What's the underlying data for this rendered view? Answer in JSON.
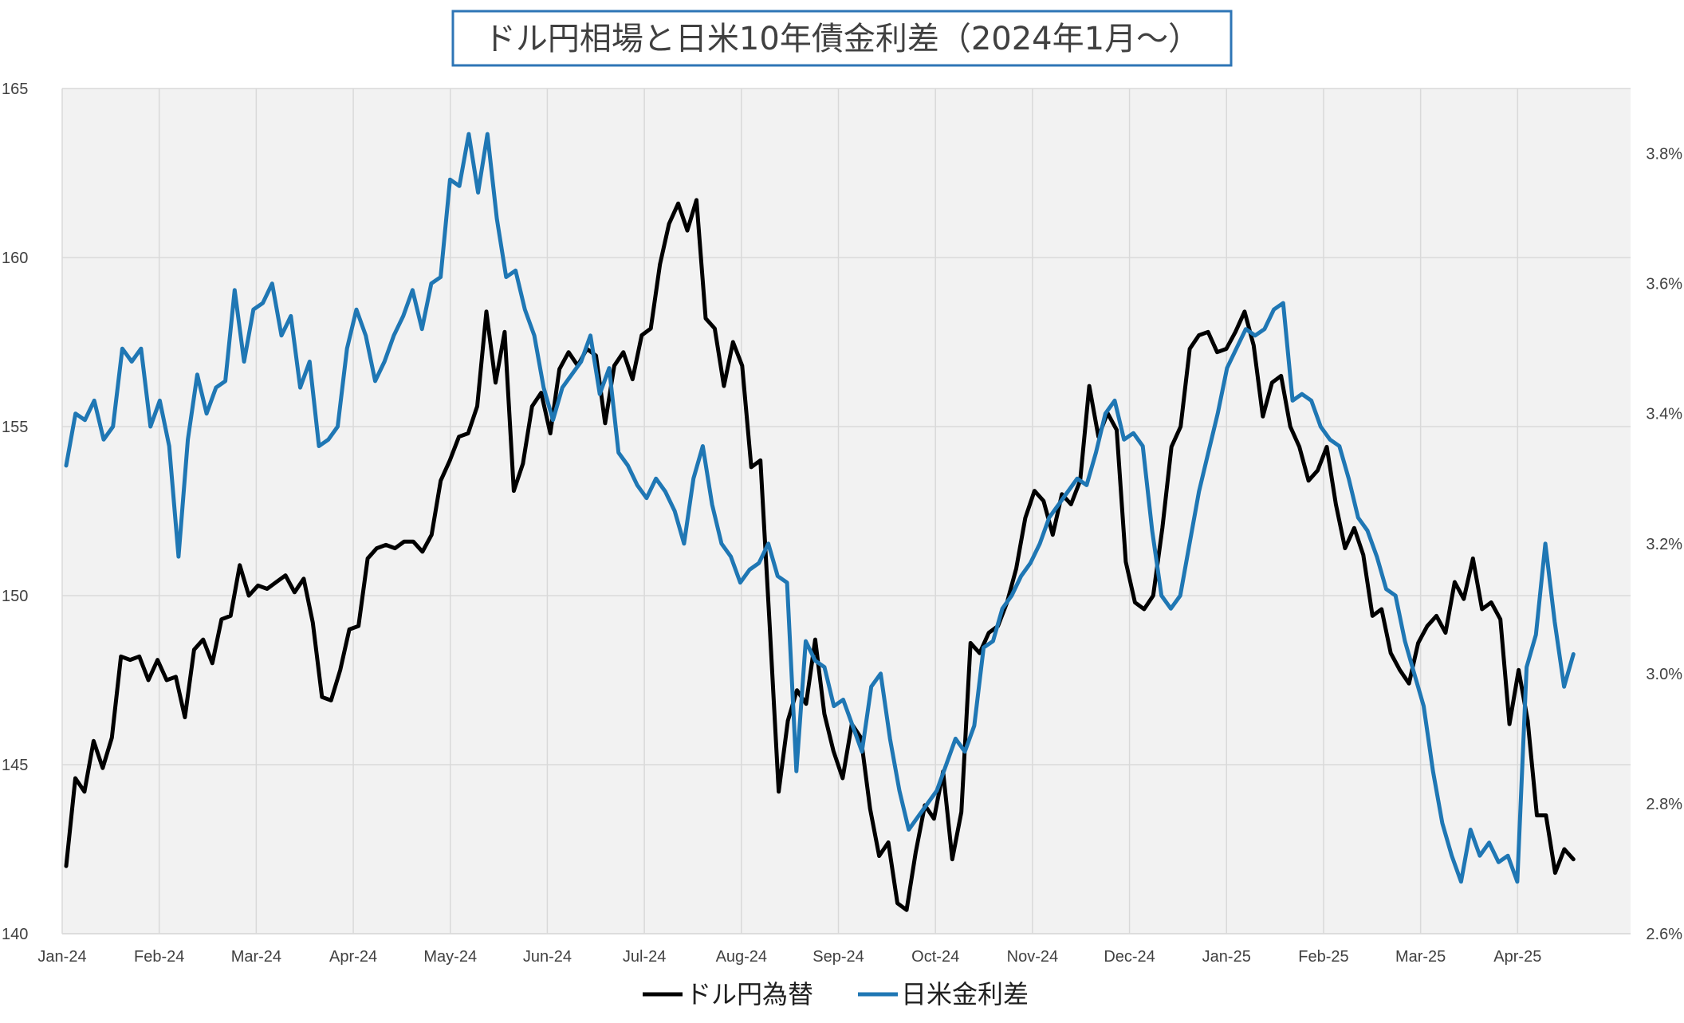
{
  "chart_data": {
    "type": "line",
    "title": "ドル円相場と日米10年債金利差（2024年1月～）",
    "x_labels": [
      "Jan-24",
      "Feb-24",
      "Mar-24",
      "Apr-24",
      "May-24",
      "Jun-24",
      "Jul-24",
      "Aug-24",
      "Sep-24",
      "Oct-24",
      "Nov-24",
      "Dec-24",
      "Jan-25",
      "Feb-25",
      "Mar-25",
      "Apr-25"
    ],
    "y_left": {
      "min": 140,
      "max": 165,
      "ticks": [
        "140",
        "145",
        "150",
        "155",
        "160",
        "165"
      ]
    },
    "y_right": {
      "min": 2.6,
      "max": 3.9,
      "ticks": [
        "2.6%",
        "2.8%",
        "3.0%",
        "3.2%",
        "3.4%",
        "3.6%",
        "3.8%"
      ]
    },
    "grid": true,
    "legend_position": "bottom",
    "series": [
      {
        "name": "ドル円為替",
        "axis": "left",
        "color": "#000000",
        "values": [
          142.0,
          144.6,
          144.2,
          145.7,
          144.9,
          145.8,
          148.2,
          148.1,
          148.2,
          147.5,
          148.1,
          147.5,
          147.6,
          146.4,
          148.4,
          148.7,
          148.0,
          149.3,
          149.4,
          150.9,
          150.0,
          150.3,
          150.2,
          150.4,
          150.6,
          150.1,
          150.5,
          149.2,
          147.0,
          146.9,
          147.8,
          149.0,
          149.1,
          151.1,
          151.4,
          151.5,
          151.4,
          151.6,
          151.6,
          151.3,
          151.8,
          153.4,
          154.0,
          154.7,
          154.8,
          155.6,
          158.4,
          156.3,
          157.8,
          153.1,
          153.9,
          155.6,
          156.0,
          154.8,
          156.7,
          157.2,
          156.8,
          157.3,
          157.1,
          155.1,
          156.8,
          157.2,
          156.4,
          157.7,
          157.9,
          159.8,
          161.0,
          161.6,
          160.8,
          161.7,
          158.2,
          157.9,
          156.2,
          157.5,
          156.8,
          153.8,
          154.0,
          149.2,
          144.2,
          146.3,
          147.2,
          146.8,
          148.7,
          146.5,
          145.4,
          144.6,
          146.2,
          145.8,
          143.7,
          142.3,
          142.7,
          140.9,
          140.7,
          142.4,
          143.8,
          143.4,
          144.8,
          142.2,
          143.6,
          148.6,
          148.3,
          148.9,
          149.1,
          149.8,
          150.8,
          152.3,
          153.1,
          152.8,
          151.8,
          153.0,
          152.7,
          153.4,
          156.2,
          154.7,
          155.4,
          154.9,
          151.0,
          149.8,
          149.6,
          150.0,
          152.0,
          154.4,
          155.0,
          157.3,
          157.7,
          157.8,
          157.2,
          157.3,
          157.8,
          158.4,
          157.4,
          155.3,
          156.3,
          156.5,
          155.0,
          154.4,
          153.4,
          153.7,
          154.4,
          152.7,
          151.4,
          152.0,
          151.2,
          149.4,
          149.6,
          148.3,
          147.8,
          147.4,
          148.6,
          149.1,
          149.4,
          148.9,
          150.4,
          149.9,
          151.1,
          149.6,
          149.8,
          149.3,
          146.2,
          147.8,
          146.3,
          143.5,
          143.5,
          141.8,
          142.5,
          142.2
        ]
      },
      {
        "name": "日米金利差",
        "axis": "right",
        "color": "#1f77b4",
        "values": [
          3.32,
          3.4,
          3.39,
          3.42,
          3.36,
          3.38,
          3.5,
          3.48,
          3.5,
          3.38,
          3.42,
          3.35,
          3.18,
          3.36,
          3.46,
          3.4,
          3.44,
          3.45,
          3.59,
          3.48,
          3.56,
          3.57,
          3.6,
          3.52,
          3.55,
          3.44,
          3.48,
          3.35,
          3.36,
          3.38,
          3.5,
          3.56,
          3.52,
          3.45,
          3.48,
          3.52,
          3.55,
          3.59,
          3.53,
          3.6,
          3.61,
          3.76,
          3.75,
          3.83,
          3.74,
          3.83,
          3.7,
          3.61,
          3.62,
          3.56,
          3.52,
          3.44,
          3.39,
          3.44,
          3.46,
          3.48,
          3.52,
          3.43,
          3.47,
          3.34,
          3.32,
          3.29,
          3.27,
          3.3,
          3.28,
          3.25,
          3.2,
          3.3,
          3.35,
          3.26,
          3.2,
          3.18,
          3.14,
          3.16,
          3.17,
          3.2,
          3.15,
          3.14,
          2.85,
          3.05,
          3.02,
          3.01,
          2.95,
          2.96,
          2.92,
          2.88,
          2.98,
          3.0,
          2.9,
          2.82,
          2.76,
          2.78,
          2.8,
          2.82,
          2.86,
          2.9,
          2.88,
          2.92,
          3.04,
          3.05,
          3.1,
          3.12,
          3.15,
          3.17,
          3.2,
          3.24,
          3.26,
          3.28,
          3.3,
          3.29,
          3.34,
          3.4,
          3.42,
          3.36,
          3.37,
          3.35,
          3.22,
          3.12,
          3.1,
          3.12,
          3.2,
          3.28,
          3.34,
          3.4,
          3.47,
          3.5,
          3.53,
          3.52,
          3.53,
          3.56,
          3.57,
          3.42,
          3.43,
          3.42,
          3.38,
          3.36,
          3.35,
          3.3,
          3.24,
          3.22,
          3.18,
          3.13,
          3.12,
          3.05,
          3.0,
          2.95,
          2.85,
          2.77,
          2.72,
          2.68,
          2.76,
          2.72,
          2.74,
          2.71,
          2.72,
          2.68,
          3.01,
          3.06,
          3.2,
          3.08,
          2.98,
          3.03
        ]
      }
    ]
  }
}
